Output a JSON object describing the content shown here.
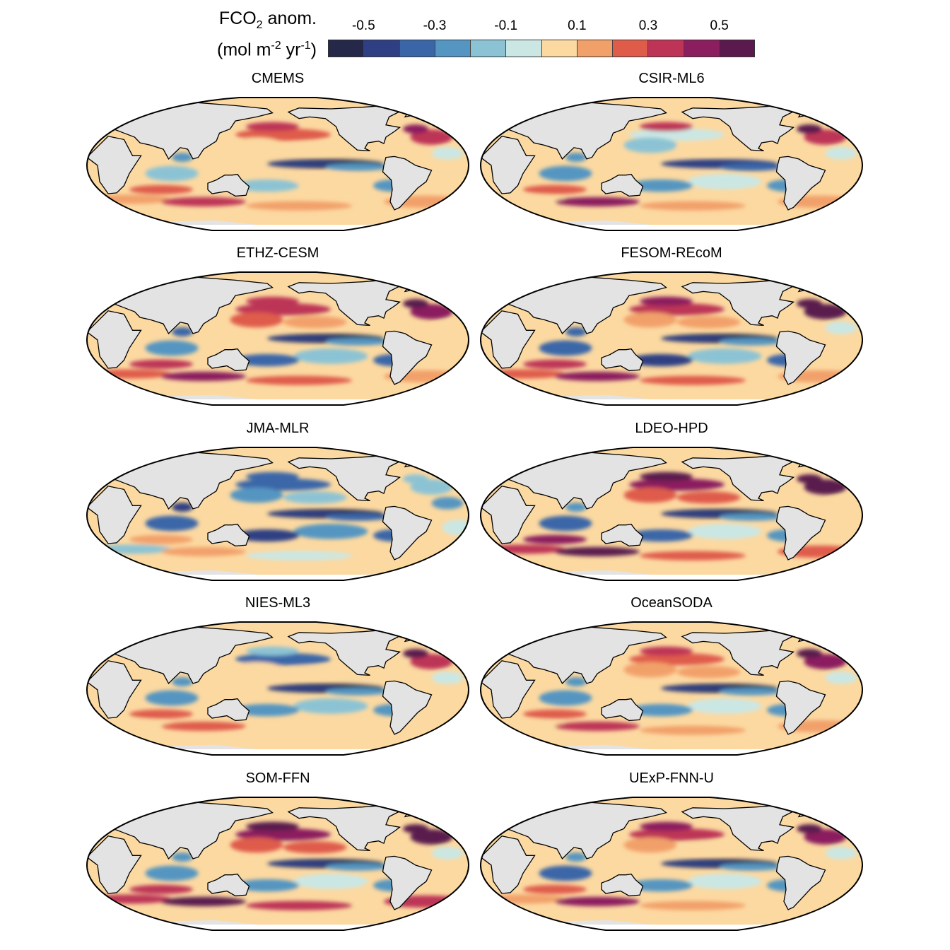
{
  "colorbar": {
    "title_main": "FCO",
    "title_sub": "2",
    "title_rest": " anom.",
    "units_prefix": "(mol m",
    "units_exp1": "-2",
    "units_mid": " yr",
    "units_exp2": "-1",
    "units_suffix": ")",
    "ticks": [
      "-0.5",
      "-0.3",
      "-0.1",
      "0.1",
      "0.3",
      "0.5"
    ],
    "colors": [
      "#252849",
      "#2f3f83",
      "#3a66a8",
      "#5495c1",
      "#8cc3d4",
      "#cbe7e4",
      "#fcd9a1",
      "#f2a06a",
      "#df5c4b",
      "#bd3456",
      "#8b1e5e",
      "#5a1a4e"
    ],
    "land_color": "#e3e3e3"
  },
  "panels": [
    {
      "name": "CMEMS"
    },
    {
      "name": "CSIR-ML6"
    },
    {
      "name": "ETHZ-CESM"
    },
    {
      "name": "FESOM-REcoM"
    },
    {
      "name": "JMA-MLR"
    },
    {
      "name": "LDEO-HPD"
    },
    {
      "name": "NIES-ML3"
    },
    {
      "name": "OceanSODA"
    },
    {
      "name": "SOM-FFN"
    },
    {
      "name": "UExP-FNN-U"
    }
  ]
}
